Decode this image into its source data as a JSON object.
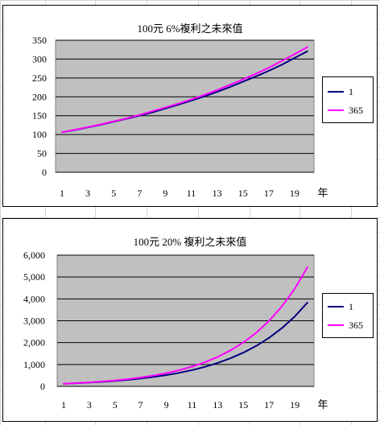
{
  "chart_data": [
    {
      "type": "line",
      "title": "100元 6%複利之未來值",
      "xlabel": "年",
      "ylabel": "",
      "x": [
        1,
        2,
        3,
        4,
        5,
        6,
        7,
        8,
        9,
        10,
        11,
        12,
        13,
        14,
        15,
        16,
        17,
        18,
        19,
        20
      ],
      "x_tick_labels": [
        "1",
        "3",
        "5",
        "7",
        "9",
        "11",
        "13",
        "15",
        "17",
        "19"
      ],
      "y_tick_labels": [
        "0",
        "50",
        "100",
        "150",
        "200",
        "250",
        "300",
        "350"
      ],
      "ylim": [
        0,
        350
      ],
      "grid": true,
      "legend": "right",
      "series": [
        {
          "name": "1",
          "color": "#000080",
          "values": [
            106,
            112,
            119,
            126,
            134,
            142,
            150,
            159,
            169,
            179,
            190,
            201,
            213,
            226,
            240,
            254,
            269,
            285,
            303,
            321
          ]
        },
        {
          "name": "365",
          "color": "#ff00ff",
          "values": [
            106,
            113,
            120,
            127,
            135,
            143,
            152,
            162,
            172,
            182,
            193,
            205,
            218,
            232,
            246,
            261,
            277,
            295,
            313,
            332
          ]
        }
      ]
    },
    {
      "type": "line",
      "title": "100元 20% 複利之未來值",
      "xlabel": "年",
      "ylabel": "",
      "x": [
        1,
        2,
        3,
        4,
        5,
        6,
        7,
        8,
        9,
        10,
        11,
        12,
        13,
        14,
        15,
        16,
        17,
        18,
        19,
        20
      ],
      "x_tick_labels": [
        "1",
        "3",
        "5",
        "7",
        "9",
        "11",
        "13",
        "15",
        "17",
        "19"
      ],
      "y_tick_labels": [
        "0",
        "1,000",
        "2,000",
        "3,000",
        "4,000",
        "5,000",
        "6,000"
      ],
      "ylim": [
        0,
        6000
      ],
      "grid": true,
      "legend": "right",
      "series": [
        {
          "name": "1",
          "color": "#000080",
          "values": [
            120,
            144,
            173,
            207,
            249,
            299,
            358,
            430,
            516,
            619,
            743,
            892,
            1070,
            1284,
            1541,
            1849,
            2219,
            2662,
            3195,
            3834
          ]
        },
        {
          "name": "365",
          "color": "#ff00ff",
          "values": [
            122,
            149,
            182,
            223,
            272,
            332,
            405,
            495,
            605,
            739,
            903,
            1102,
            1346,
            1644,
            2008,
            2452,
            2994,
            3657,
            4466,
            5454
          ]
        }
      ]
    }
  ]
}
